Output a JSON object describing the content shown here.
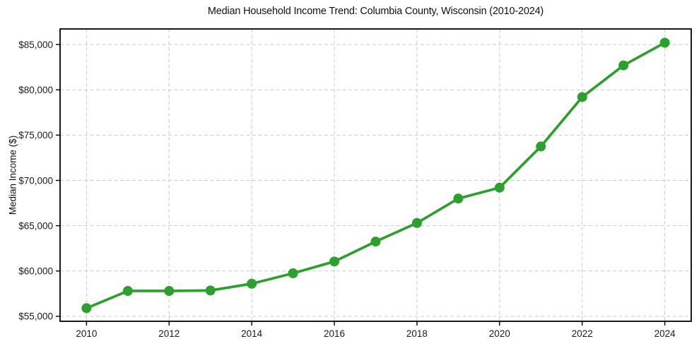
{
  "chart_data": {
    "type": "line",
    "title": "Median Household Income Trend: Columbia County, Wisconsin (2010-2024)",
    "xlabel": "",
    "ylabel": "Median Income ($)",
    "x": [
      2010,
      2011,
      2012,
      2013,
      2014,
      2015,
      2016,
      2017,
      2018,
      2019,
      2020,
      2021,
      2022,
      2023,
      2024
    ],
    "values": [
      55900,
      57800,
      57800,
      57850,
      58600,
      59750,
      61050,
      63250,
      65300,
      68000,
      69200,
      73750,
      79200,
      82700,
      85200
    ],
    "xticks": [
      2010,
      2012,
      2014,
      2016,
      2018,
      2020,
      2022,
      2024
    ],
    "yticks": [
      55000,
      60000,
      65000,
      70000,
      75000,
      80000,
      85000
    ],
    "ytick_labels": [
      "$55,000",
      "$60,000",
      "$65,000",
      "$70,000",
      "$75,000",
      "$80,000",
      "$85,000"
    ],
    "xlim": [
      2009.36,
      2024.64
    ],
    "ylim": [
      54450,
      86720
    ],
    "grid": true,
    "grid_style": "dashed",
    "legend_position": "none",
    "line_color": "#2ca02c",
    "marker_color": "#2ca02c",
    "grid_color": "#c9c9c9",
    "axis_color": "#000000",
    "tick_label_color": "#1a1a1a"
  }
}
